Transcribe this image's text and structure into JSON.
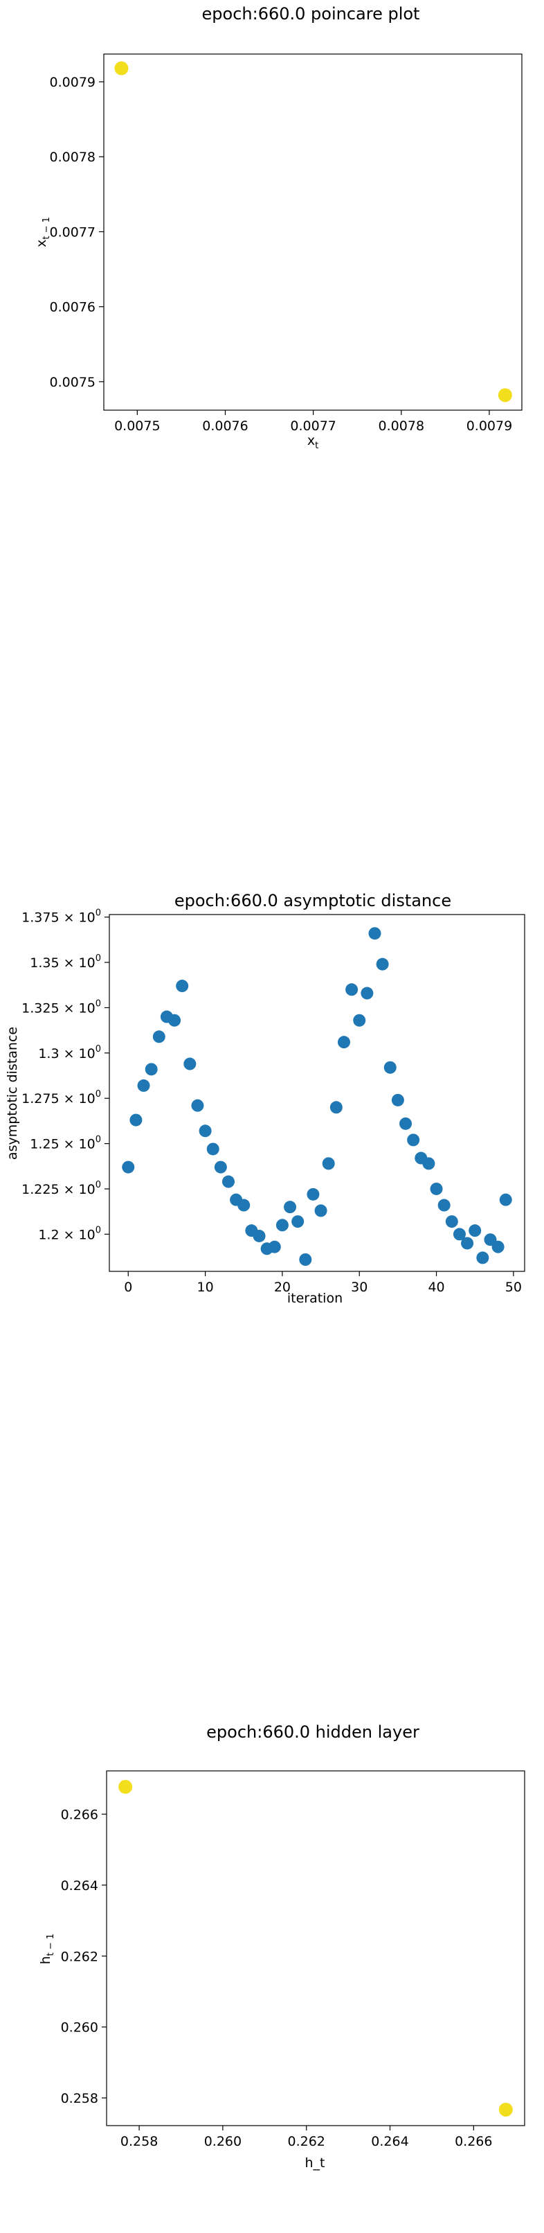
{
  "colors": {
    "point_yellow": "#f2de1d",
    "point_blue": "#1f77b4"
  },
  "chart_data": [
    {
      "type": "scatter",
      "title": "epoch:660.0 poincare plot",
      "xlabel": "x_t",
      "ylabel": "x_{t-1}",
      "xlim": [
        0.007462,
        0.007937
      ],
      "ylim": [
        0.007462,
        0.007937
      ],
      "xticks": [
        "0.0075",
        "0.0076",
        "0.0077",
        "0.0078",
        "0.0079"
      ],
      "yticks": [
        "0.0075",
        "0.0076",
        "0.0077",
        "0.0078",
        "0.0079"
      ],
      "tick_values": [
        0.0075,
        0.0076,
        0.0077,
        0.0078,
        0.0079
      ],
      "points": [
        {
          "x": 0.007482,
          "y": 0.007918
        },
        {
          "x": 0.007918,
          "y": 0.007482
        }
      ],
      "color": "yellow"
    },
    {
      "type": "scatter",
      "title": "epoch:660.0 asymptotic distance",
      "xlabel": "iteration",
      "ylabel": "asymptotic distance",
      "xlim": [
        -2.45,
        51.45
      ],
      "ylim": [
        1.1795,
        1.3764
      ],
      "xticks": [
        "0",
        "10",
        "20",
        "30",
        "40",
        "50"
      ],
      "xtick_values": [
        0,
        10,
        20,
        30,
        40,
        50
      ],
      "yticks": [
        "1.2",
        "1.225",
        "1.25",
        "1.275",
        "1.3",
        "1.325",
        "1.35",
        "1.375"
      ],
      "ytick_values": [
        1.2,
        1.225,
        1.25,
        1.275,
        1.3,
        1.325,
        1.35,
        1.375
      ],
      "ytick_suffix": "× 10",
      "ytick_exponent": "0",
      "x": [
        0,
        1,
        2,
        3,
        4,
        5,
        6,
        7,
        8,
        9,
        10,
        11,
        12,
        13,
        14,
        15,
        16,
        17,
        18,
        19,
        20,
        21,
        22,
        23,
        24,
        25,
        26,
        27,
        28,
        29,
        30,
        31,
        32,
        33,
        34,
        35,
        36,
        37,
        38,
        39,
        40,
        41,
        42,
        43,
        44,
        45,
        46,
        47,
        48,
        49
      ],
      "y": [
        1.237,
        1.263,
        1.282,
        1.291,
        1.309,
        1.32,
        1.318,
        1.337,
        1.294,
        1.271,
        1.257,
        1.247,
        1.237,
        1.229,
        1.219,
        1.216,
        1.202,
        1.199,
        1.192,
        1.193,
        1.205,
        1.215,
        1.207,
        1.186,
        1.222,
        1.213,
        1.239,
        1.27,
        1.306,
        1.335,
        1.318,
        1.333,
        1.366,
        1.349,
        1.292,
        1.274,
        1.261,
        1.252,
        1.242,
        1.239,
        1.225,
        1.216,
        1.207,
        1.2,
        1.195,
        1.202,
        1.187,
        1.197,
        1.193,
        1.219
      ],
      "color": "blue"
    },
    {
      "type": "scatter",
      "title": "epoch:660.0 hidden layer",
      "xlabel": "h_t",
      "ylabel": "h_{t-1}",
      "xlim": [
        0.25722,
        0.26722
      ],
      "ylim": [
        0.25722,
        0.26722
      ],
      "xticks": [
        "0.258",
        "0.260",
        "0.262",
        "0.264",
        "0.266"
      ],
      "yticks": [
        "0.258",
        "0.260",
        "0.262",
        "0.264",
        "0.266"
      ],
      "tick_values": [
        0.258,
        0.26,
        0.262,
        0.264,
        0.266
      ],
      "points": [
        {
          "x": 0.25767,
          "y": 0.26677
        },
        {
          "x": 0.26677,
          "y": 0.25767
        }
      ],
      "color": "yellow"
    }
  ]
}
